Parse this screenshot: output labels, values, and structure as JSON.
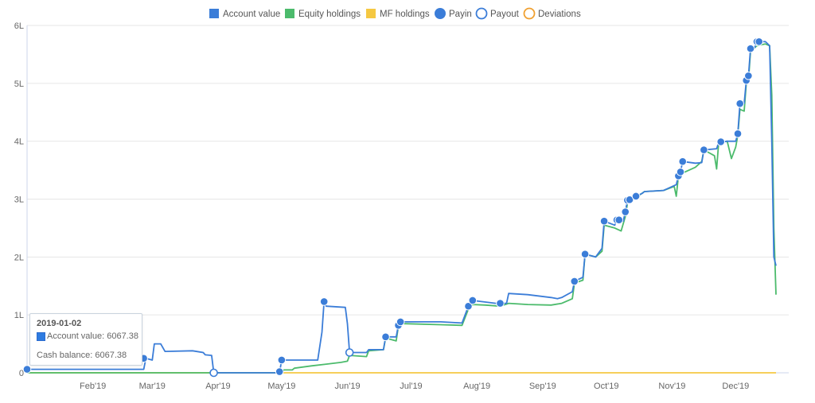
{
  "legend": {
    "items": [
      {
        "label": "Account value",
        "color": "#3b7dd8",
        "marker": "square"
      },
      {
        "label": "Equity holdings",
        "color": "#4cbb6c",
        "marker": "square"
      },
      {
        "label": "MF holdings",
        "color": "#f5c842",
        "marker": "square"
      },
      {
        "label": "Payin",
        "color": "#3b7dd8",
        "marker": "filled-circle"
      },
      {
        "label": "Payout",
        "color": "#3b7dd8",
        "marker": "open-circle"
      },
      {
        "label": "Deviations",
        "color": "#f0a030",
        "marker": "open-circle"
      }
    ]
  },
  "tooltip": {
    "date": "2019-01-02",
    "account_value": "Account value: 6067.38",
    "cash_balance": "Cash balance: 6067.38"
  },
  "chart_data": {
    "type": "line",
    "x_domain": [
      "2019-01-01",
      "2019-12-26"
    ],
    "ylim": [
      0,
      600000
    ],
    "yticks": [
      {
        "v": 0,
        "label": "0"
      },
      {
        "v": 100000,
        "label": "1L"
      },
      {
        "v": 200000,
        "label": "2L"
      },
      {
        "v": 300000,
        "label": "3L"
      },
      {
        "v": 400000,
        "label": "4L"
      },
      {
        "v": 500000,
        "label": "5L"
      },
      {
        "v": 600000,
        "label": "6L"
      }
    ],
    "xticks": [
      {
        "date": "2019-02-01",
        "label": "Feb'19"
      },
      {
        "date": "2019-03-01",
        "label": "Mar'19"
      },
      {
        "date": "2019-04-01",
        "label": "Apr'19"
      },
      {
        "date": "2019-05-01",
        "label": "May'19"
      },
      {
        "date": "2019-06-01",
        "label": "Jun'19"
      },
      {
        "date": "2019-07-01",
        "label": "Jul'19"
      },
      {
        "date": "2019-08-01",
        "label": "Aug'19"
      },
      {
        "date": "2019-09-01",
        "label": "Sep'19"
      },
      {
        "date": "2019-10-01",
        "label": "Oct'19"
      },
      {
        "date": "2019-11-01",
        "label": "Nov'19"
      },
      {
        "date": "2019-12-01",
        "label": "Dec'19"
      }
    ],
    "grid": "horizontal",
    "legend_position": "top-center",
    "series": [
      {
        "name": "Account value",
        "color": "#3b7dd8",
        "points": [
          [
            "2019-01-01",
            6067
          ],
          [
            "2019-02-25",
            6067
          ],
          [
            "2019-02-26",
            25000
          ],
          [
            "2019-03-01",
            22000
          ],
          [
            "2019-03-02",
            50000
          ],
          [
            "2019-03-05",
            50000
          ],
          [
            "2019-03-07",
            37000
          ],
          [
            "2019-03-20",
            38000
          ],
          [
            "2019-03-25",
            35000
          ],
          [
            "2019-03-26",
            31000
          ],
          [
            "2019-03-29",
            30000
          ],
          [
            "2019-03-30",
            0
          ],
          [
            "2019-04-30",
            0
          ],
          [
            "2019-05-01",
            22000
          ],
          [
            "2019-05-18",
            22000
          ],
          [
            "2019-05-20",
            70000
          ],
          [
            "2019-05-21",
            123000
          ],
          [
            "2019-05-22",
            115000
          ],
          [
            "2019-05-31",
            113000
          ],
          [
            "2019-06-01",
            85000
          ],
          [
            "2019-06-02",
            35000
          ],
          [
            "2019-06-10",
            35000
          ],
          [
            "2019-06-11",
            40000
          ],
          [
            "2019-06-18",
            40000
          ],
          [
            "2019-06-19",
            62000
          ],
          [
            "2019-06-24",
            62000
          ],
          [
            "2019-06-25",
            82000
          ],
          [
            "2019-06-26",
            88000
          ],
          [
            "2019-07-15",
            88000
          ],
          [
            "2019-07-25",
            86000
          ],
          [
            "2019-07-28",
            115000
          ],
          [
            "2019-07-30",
            125000
          ],
          [
            "2019-08-10",
            120000
          ],
          [
            "2019-08-15",
            120000
          ],
          [
            "2019-08-16",
            137000
          ],
          [
            "2019-08-25",
            135000
          ],
          [
            "2019-09-05",
            130000
          ],
          [
            "2019-09-08",
            128000
          ],
          [
            "2019-09-10",
            130000
          ],
          [
            "2019-09-15",
            140000
          ],
          [
            "2019-09-16",
            158000
          ],
          [
            "2019-09-20",
            165000
          ],
          [
            "2019-09-21",
            205000
          ],
          [
            "2019-09-26",
            200000
          ],
          [
            "2019-09-29",
            215000
          ],
          [
            "2019-09-30",
            262000
          ],
          [
            "2019-10-05",
            255000
          ],
          [
            "2019-10-06",
            265000
          ],
          [
            "2019-10-09",
            262000
          ],
          [
            "2019-10-10",
            278000
          ],
          [
            "2019-10-11",
            298000
          ],
          [
            "2019-10-14",
            300000
          ],
          [
            "2019-10-15",
            305000
          ],
          [
            "2019-10-18",
            310000
          ],
          [
            "2019-10-19",
            313000
          ],
          [
            "2019-10-28",
            315000
          ],
          [
            "2019-11-03",
            325000
          ],
          [
            "2019-11-04",
            340000
          ],
          [
            "2019-11-05",
            347000
          ],
          [
            "2019-11-06",
            365000
          ],
          [
            "2019-11-12",
            362000
          ],
          [
            "2019-11-15",
            363000
          ],
          [
            "2019-11-16",
            385000
          ],
          [
            "2019-11-22",
            387000
          ],
          [
            "2019-11-23",
            398000
          ],
          [
            "2019-11-27",
            400000
          ],
          [
            "2019-12-01",
            400000
          ],
          [
            "2019-12-02",
            413000
          ],
          [
            "2019-12-03",
            465000
          ],
          [
            "2019-12-05",
            465000
          ],
          [
            "2019-12-06",
            505000
          ],
          [
            "2019-12-07",
            513000
          ],
          [
            "2019-12-08",
            560000
          ],
          [
            "2019-12-10",
            562000
          ],
          [
            "2019-12-11",
            572000
          ],
          [
            "2019-12-15",
            572000
          ],
          [
            "2019-12-17",
            565000
          ],
          [
            "2019-12-18",
            400000
          ],
          [
            "2019-12-19",
            200000
          ],
          [
            "2019-12-20",
            185000
          ]
        ]
      },
      {
        "name": "Equity holdings",
        "color": "#4cbb6c",
        "points": [
          [
            "2019-01-01",
            0
          ],
          [
            "2019-05-01",
            0
          ],
          [
            "2019-05-02",
            5000
          ],
          [
            "2019-05-06",
            5000
          ],
          [
            "2019-05-07",
            8000
          ],
          [
            "2019-05-15",
            12000
          ],
          [
            "2019-05-22",
            15000
          ],
          [
            "2019-05-29",
            18000
          ],
          [
            "2019-06-01",
            20000
          ],
          [
            "2019-06-02",
            30000
          ],
          [
            "2019-06-10",
            28000
          ],
          [
            "2019-06-11",
            38000
          ],
          [
            "2019-06-18",
            40000
          ],
          [
            "2019-06-19",
            60000
          ],
          [
            "2019-06-24",
            55000
          ],
          [
            "2019-06-25",
            80000
          ],
          [
            "2019-06-27",
            85000
          ],
          [
            "2019-07-15",
            83000
          ],
          [
            "2019-07-25",
            82000
          ],
          [
            "2019-07-28",
            110000
          ],
          [
            "2019-07-30",
            118000
          ],
          [
            "2019-08-05",
            117000
          ],
          [
            "2019-08-12",
            115000
          ],
          [
            "2019-08-16",
            120000
          ],
          [
            "2019-08-25",
            118000
          ],
          [
            "2019-09-05",
            117000
          ],
          [
            "2019-09-10",
            120000
          ],
          [
            "2019-09-15",
            128000
          ],
          [
            "2019-09-16",
            155000
          ],
          [
            "2019-09-20",
            160000
          ],
          [
            "2019-09-21",
            205000
          ],
          [
            "2019-09-26",
            200000
          ],
          [
            "2019-09-29",
            210000
          ],
          [
            "2019-09-30",
            255000
          ],
          [
            "2019-10-05",
            250000
          ],
          [
            "2019-10-08",
            245000
          ],
          [
            "2019-10-10",
            270000
          ],
          [
            "2019-10-11",
            293000
          ],
          [
            "2019-10-14",
            300000
          ],
          [
            "2019-10-19",
            313000
          ],
          [
            "2019-10-28",
            315000
          ],
          [
            "2019-11-02",
            322000
          ],
          [
            "2019-11-03",
            305000
          ],
          [
            "2019-11-04",
            340000
          ],
          [
            "2019-11-05",
            340000
          ],
          [
            "2019-11-06",
            345000
          ],
          [
            "2019-11-12",
            355000
          ],
          [
            "2019-11-15",
            365000
          ],
          [
            "2019-11-16",
            385000
          ],
          [
            "2019-11-21",
            375000
          ],
          [
            "2019-11-22",
            352000
          ],
          [
            "2019-11-23",
            398000
          ],
          [
            "2019-11-27",
            400000
          ],
          [
            "2019-11-29",
            370000
          ],
          [
            "2019-12-01",
            390000
          ],
          [
            "2019-12-02",
            410000
          ],
          [
            "2019-12-03",
            455000
          ],
          [
            "2019-12-05",
            452000
          ],
          [
            "2019-12-06",
            500000
          ],
          [
            "2019-12-07",
            505000
          ],
          [
            "2019-12-08",
            555000
          ],
          [
            "2019-12-11",
            565000
          ],
          [
            "2019-12-15",
            568000
          ],
          [
            "2019-12-17",
            565000
          ],
          [
            "2019-12-18",
            480000
          ],
          [
            "2019-12-19",
            250000
          ],
          [
            "2019-12-20",
            135000
          ]
        ]
      },
      {
        "name": "MF holdings",
        "color": "#f5c842",
        "points": [
          [
            "2019-01-01",
            0
          ],
          [
            "2019-12-20",
            0
          ]
        ]
      }
    ],
    "payins": [
      [
        "2019-01-01",
        6067
      ],
      [
        "2019-02-25",
        25000
      ],
      [
        "2019-04-30",
        2000
      ],
      [
        "2019-05-01",
        22000
      ],
      [
        "2019-05-21",
        123000
      ],
      [
        "2019-06-19",
        62000
      ],
      [
        "2019-06-25",
        82000
      ],
      [
        "2019-06-26",
        88000
      ],
      [
        "2019-07-28",
        115000
      ],
      [
        "2019-07-30",
        125000
      ],
      [
        "2019-08-12",
        120000
      ],
      [
        "2019-09-16",
        158000
      ],
      [
        "2019-09-21",
        205000
      ],
      [
        "2019-09-30",
        262000
      ],
      [
        "2019-10-06",
        264000
      ],
      [
        "2019-10-07",
        264000
      ],
      [
        "2019-10-10",
        278000
      ],
      [
        "2019-10-11",
        298000
      ],
      [
        "2019-10-12",
        299000
      ],
      [
        "2019-10-15",
        305000
      ],
      [
        "2019-11-04",
        340000
      ],
      [
        "2019-11-05",
        347000
      ],
      [
        "2019-11-06",
        365000
      ],
      [
        "2019-11-16",
        385000
      ],
      [
        "2019-11-24",
        399000
      ],
      [
        "2019-12-02",
        413000
      ],
      [
        "2019-12-03",
        465000
      ],
      [
        "2019-12-06",
        505000
      ],
      [
        "2019-12-07",
        513000
      ],
      [
        "2019-12-08",
        560000
      ],
      [
        "2019-12-11",
        572000
      ],
      [
        "2019-12-12",
        572000
      ]
    ],
    "payouts": [
      [
        "2019-03-30",
        0
      ],
      [
        "2019-06-02",
        35000
      ]
    ]
  }
}
